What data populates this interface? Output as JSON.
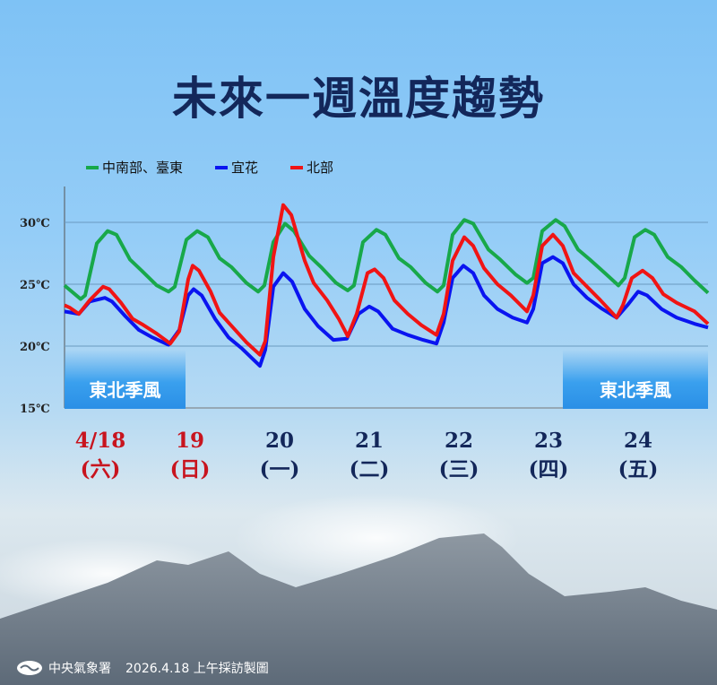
{
  "chart_data": {
    "type": "line",
    "title": "未來一週溫度趨勢",
    "ylim": [
      15,
      32
    ],
    "yticks": [
      "15℃",
      "20℃",
      "25℃",
      "30℃"
    ],
    "ytick_values": [
      15,
      20,
      25,
      30
    ],
    "xunit": "days since 4/18 00:00 (approx.)",
    "xlim": [
      0,
      7.18
    ],
    "day_labels": [
      {
        "date": "4/18",
        "dow": "(六)",
        "color": "#c8141e"
      },
      {
        "date": "19",
        "dow": "(日)",
        "color": "#c8141e"
      },
      {
        "date": "20",
        "dow": "(一)",
        "color": "#13275a"
      },
      {
        "date": "21",
        "dow": "(二)",
        "color": "#13275a"
      },
      {
        "date": "22",
        "dow": "(三)",
        "color": "#13275a"
      },
      {
        "date": "23",
        "dow": "(四)",
        "color": "#13275a"
      },
      {
        "date": "24",
        "dow": "(五)",
        "color": "#13275a"
      }
    ],
    "series": [
      {
        "name": "中南部、臺東",
        "color": "#18a84a",
        "points": [
          [
            0,
            24.9
          ],
          [
            0.18,
            23.8
          ],
          [
            0.23,
            24.1
          ],
          [
            0.36,
            28.3
          ],
          [
            0.48,
            29.3
          ],
          [
            0.58,
            29.0
          ],
          [
            0.73,
            27.0
          ],
          [
            0.86,
            26.1
          ],
          [
            1.03,
            24.9
          ],
          [
            1.16,
            24.4
          ],
          [
            1.23,
            24.8
          ],
          [
            1.36,
            28.6
          ],
          [
            1.48,
            29.3
          ],
          [
            1.6,
            28.8
          ],
          [
            1.73,
            27.1
          ],
          [
            1.86,
            26.4
          ],
          [
            2.03,
            25.1
          ],
          [
            2.16,
            24.4
          ],
          [
            2.23,
            24.9
          ],
          [
            2.33,
            28.4
          ],
          [
            2.46,
            29.9
          ],
          [
            2.56,
            29.3
          ],
          [
            2.73,
            27.3
          ],
          [
            2.86,
            26.4
          ],
          [
            3.03,
            25.1
          ],
          [
            3.16,
            24.5
          ],
          [
            3.23,
            24.9
          ],
          [
            3.33,
            28.4
          ],
          [
            3.48,
            29.4
          ],
          [
            3.58,
            29.0
          ],
          [
            3.73,
            27.1
          ],
          [
            3.86,
            26.4
          ],
          [
            4.03,
            25.1
          ],
          [
            4.16,
            24.4
          ],
          [
            4.23,
            24.9
          ],
          [
            4.33,
            29.0
          ],
          [
            4.46,
            30.2
          ],
          [
            4.56,
            29.9
          ],
          [
            4.73,
            27.8
          ],
          [
            4.86,
            27.0
          ],
          [
            5.03,
            25.8
          ],
          [
            5.16,
            25.1
          ],
          [
            5.23,
            25.5
          ],
          [
            5.33,
            29.3
          ],
          [
            5.48,
            30.2
          ],
          [
            5.58,
            29.7
          ],
          [
            5.73,
            27.8
          ],
          [
            5.86,
            27.0
          ],
          [
            6.03,
            25.9
          ],
          [
            6.18,
            24.9
          ],
          [
            6.25,
            25.5
          ],
          [
            6.36,
            28.8
          ],
          [
            6.48,
            29.4
          ],
          [
            6.58,
            29.0
          ],
          [
            6.73,
            27.2
          ],
          [
            6.88,
            26.4
          ],
          [
            7.03,
            25.3
          ],
          [
            7.18,
            24.3
          ]
        ]
      },
      {
        "name": "宜花",
        "color": "#0a14f0",
        "points": [
          [
            0,
            22.8
          ],
          [
            0.16,
            22.6
          ],
          [
            0.28,
            23.6
          ],
          [
            0.45,
            23.9
          ],
          [
            0.53,
            23.6
          ],
          [
            0.68,
            22.4
          ],
          [
            0.83,
            21.3
          ],
          [
            0.98,
            20.7
          ],
          [
            1.16,
            20.1
          ],
          [
            1.28,
            21.3
          ],
          [
            1.38,
            24.1
          ],
          [
            1.44,
            24.6
          ],
          [
            1.53,
            24.1
          ],
          [
            1.68,
            22.2
          ],
          [
            1.83,
            20.7
          ],
          [
            1.98,
            19.8
          ],
          [
            2.18,
            18.4
          ],
          [
            2.24,
            19.7
          ],
          [
            2.33,
            24.8
          ],
          [
            2.44,
            25.9
          ],
          [
            2.54,
            25.2
          ],
          [
            2.68,
            23.0
          ],
          [
            2.83,
            21.6
          ],
          [
            3.0,
            20.5
          ],
          [
            3.15,
            20.6
          ],
          [
            3.28,
            22.6
          ],
          [
            3.4,
            23.2
          ],
          [
            3.5,
            22.8
          ],
          [
            3.66,
            21.4
          ],
          [
            3.83,
            20.9
          ],
          [
            4.0,
            20.5
          ],
          [
            4.15,
            20.2
          ],
          [
            4.23,
            21.9
          ],
          [
            4.33,
            25.5
          ],
          [
            4.45,
            26.5
          ],
          [
            4.56,
            25.9
          ],
          [
            4.68,
            24.1
          ],
          [
            4.83,
            23.0
          ],
          [
            5.0,
            22.3
          ],
          [
            5.16,
            21.9
          ],
          [
            5.23,
            23.0
          ],
          [
            5.33,
            26.7
          ],
          [
            5.45,
            27.2
          ],
          [
            5.56,
            26.7
          ],
          [
            5.68,
            25.0
          ],
          [
            5.83,
            23.9
          ],
          [
            6.0,
            23.0
          ],
          [
            6.16,
            22.3
          ],
          [
            6.28,
            23.3
          ],
          [
            6.4,
            24.4
          ],
          [
            6.5,
            24.1
          ],
          [
            6.66,
            23.0
          ],
          [
            6.83,
            22.3
          ],
          [
            7.03,
            21.8
          ],
          [
            7.18,
            21.5
          ]
        ]
      },
      {
        "name": "北部",
        "color": "#f01414",
        "points": [
          [
            0,
            23.3
          ],
          [
            0.06,
            23.1
          ],
          [
            0.16,
            22.6
          ],
          [
            0.28,
            23.7
          ],
          [
            0.43,
            24.8
          ],
          [
            0.5,
            24.6
          ],
          [
            0.63,
            23.5
          ],
          [
            0.76,
            22.2
          ],
          [
            0.88,
            21.7
          ],
          [
            1.03,
            21.0
          ],
          [
            1.18,
            20.2
          ],
          [
            1.28,
            21.2
          ],
          [
            1.38,
            25.4
          ],
          [
            1.43,
            26.5
          ],
          [
            1.5,
            26.1
          ],
          [
            1.63,
            24.4
          ],
          [
            1.73,
            22.7
          ],
          [
            1.88,
            21.5
          ],
          [
            2.03,
            20.3
          ],
          [
            2.18,
            19.3
          ],
          [
            2.24,
            20.4
          ],
          [
            2.33,
            27.2
          ],
          [
            2.44,
            31.4
          ],
          [
            2.53,
            30.6
          ],
          [
            2.68,
            26.9
          ],
          [
            2.78,
            25.1
          ],
          [
            2.93,
            23.7
          ],
          [
            3.06,
            22.2
          ],
          [
            3.16,
            20.8
          ],
          [
            3.26,
            22.6
          ],
          [
            3.38,
            25.9
          ],
          [
            3.46,
            26.2
          ],
          [
            3.56,
            25.5
          ],
          [
            3.68,
            23.7
          ],
          [
            3.83,
            22.6
          ],
          [
            3.98,
            21.7
          ],
          [
            4.15,
            20.9
          ],
          [
            4.23,
            22.6
          ],
          [
            4.33,
            26.9
          ],
          [
            4.46,
            28.8
          ],
          [
            4.56,
            28.1
          ],
          [
            4.68,
            26.3
          ],
          [
            4.83,
            25.0
          ],
          [
            4.98,
            24.1
          ],
          [
            5.16,
            22.8
          ],
          [
            5.23,
            24.1
          ],
          [
            5.33,
            28.1
          ],
          [
            5.45,
            29.0
          ],
          [
            5.56,
            28.1
          ],
          [
            5.68,
            25.9
          ],
          [
            5.83,
            24.8
          ],
          [
            5.98,
            23.7
          ],
          [
            6.16,
            22.3
          ],
          [
            6.23,
            23.3
          ],
          [
            6.33,
            25.5
          ],
          [
            6.45,
            26.1
          ],
          [
            6.56,
            25.5
          ],
          [
            6.68,
            24.2
          ],
          [
            6.83,
            23.5
          ],
          [
            7.03,
            22.8
          ],
          [
            7.18,
            21.8
          ]
        ]
      }
    ],
    "annotations": [
      "東北季風",
      "東北季風"
    ]
  },
  "footer": {
    "org": "中央氣象署",
    "note": "2026.4.18 上午採訪製圖"
  }
}
